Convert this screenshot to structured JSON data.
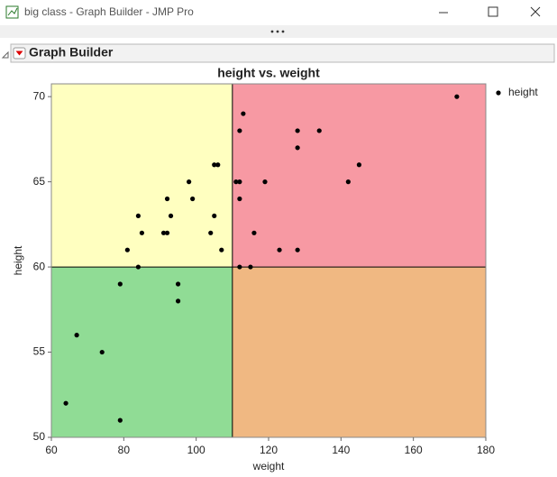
{
  "window": {
    "title": "big class - Graph Builder - JMP Pro"
  },
  "panel": {
    "title": "Graph Builder"
  },
  "chart_data": {
    "type": "scatter",
    "title": "height vs. weight",
    "x_label": "weight",
    "y_label": "height",
    "xlim": [
      60,
      180
    ],
    "ylim": [
      50,
      70.75
    ],
    "xticks": [
      60,
      80,
      100,
      120,
      140,
      160,
      180
    ],
    "yticks": [
      50,
      55,
      60,
      65,
      70
    ],
    "reference_x": 110,
    "reference_y": 60,
    "quadrant_colors": {
      "upper_left": "#ffffc0",
      "upper_right": "#f799a3",
      "lower_left": "#90dc95",
      "lower_right": "#f0b882"
    },
    "legend": "top-right",
    "series": [
      {
        "name": "height",
        "color": "#000000",
        "x": [
          172,
          113,
          112,
          128,
          134,
          128,
          105,
          106,
          145,
          98,
          111,
          112,
          119,
          142,
          92,
          99,
          112,
          84,
          93,
          105,
          85,
          91,
          92,
          104,
          116,
          81,
          107,
          123,
          128,
          84,
          112,
          115,
          79,
          95,
          95,
          67,
          74,
          64,
          79
        ],
        "values": [
          70,
          69,
          68,
          68,
          68,
          67,
          66,
          66,
          66,
          65,
          65,
          65,
          65,
          65,
          64,
          64,
          64,
          63,
          63,
          63,
          62,
          62,
          62,
          62,
          62,
          61,
          61,
          61,
          61,
          60,
          60,
          60,
          59,
          59,
          58,
          56,
          55,
          52,
          51
        ]
      }
    ]
  }
}
